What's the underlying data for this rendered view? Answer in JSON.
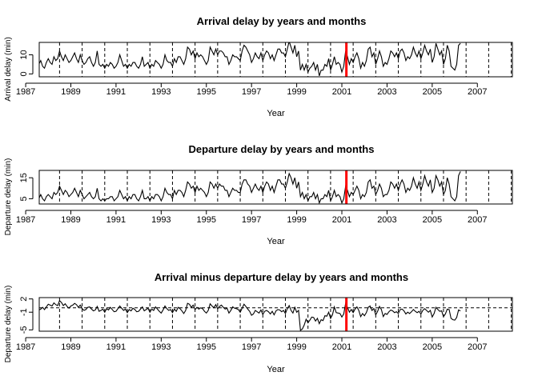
{
  "colors": {
    "series": "#000000",
    "event_line": "#ff0000",
    "frame": "#000000"
  },
  "chart_data": [
    {
      "type": "line",
      "title": "Arrival delay by years and months",
      "xlabel": "Year",
      "ylabel": "Arrival delay (min)",
      "xlim": [
        1987.6,
        2008.55
      ],
      "ylim": [
        -1.5,
        16.5
      ],
      "x_ticks": [
        1987,
        1989,
        1991,
        1993,
        1995,
        1997,
        1999,
        2001,
        2003,
        2005,
        2007
      ],
      "x_tick_labels": [
        "1987",
        "1989",
        "1991",
        "1993",
        "1995",
        "1997",
        "1999",
        "2001",
        "2003",
        "2005",
        "2007"
      ],
      "y_ticks": [
        0,
        10
      ],
      "y_tick_labels": [
        "0",
        "10"
      ],
      "year_separators": [
        1987.5,
        1988.5,
        1989.5,
        1990.5,
        1991.5,
        1992.5,
        1993.5,
        1994.5,
        1995.5,
        1996.5,
        1997.5,
        1998.5,
        1999.5,
        2000.5,
        2001.5,
        2002.5,
        2003.5,
        2004.5,
        2005.5,
        2006.5,
        2007.5,
        2008.5
      ],
      "event_line_x": 2001.2,
      "series": [
        {
          "x_start": 1987.0,
          "x_step": 0.0833333,
          "values": [
            6,
            8,
            13,
            10,
            6,
            4,
            6,
            5,
            7,
            4,
            3,
            6,
            8,
            6,
            5,
            9,
            7,
            8,
            12,
            9,
            7,
            10,
            8,
            6,
            7,
            9,
            11,
            8,
            6,
            10,
            7,
            5,
            6,
            8,
            9,
            6,
            4,
            6,
            12,
            5,
            4,
            5,
            3,
            5,
            4,
            6,
            5,
            3,
            4,
            6,
            10,
            7,
            4,
            5,
            3,
            5,
            4,
            6,
            6,
            4,
            3,
            5,
            9,
            4,
            5,
            6,
            3,
            5,
            4,
            7,
            6,
            5,
            3,
            5,
            10,
            7,
            6,
            6,
            4,
            8,
            6,
            9,
            9,
            7,
            5,
            8,
            14,
            13,
            10,
            12,
            8,
            11,
            9,
            10,
            9,
            7,
            5,
            7,
            14,
            12,
            10,
            13,
            10,
            12,
            12,
            11,
            9,
            9,
            5,
            7,
            10,
            9,
            9,
            8,
            7,
            12,
            15,
            14,
            12,
            10,
            6,
            8,
            11,
            9,
            8,
            11,
            7,
            10,
            12,
            11,
            8,
            10,
            7,
            10,
            13,
            13,
            11,
            11,
            9,
            13,
            17,
            14,
            11,
            15,
            9,
            12,
            2,
            5,
            2,
            5,
            1,
            3,
            4,
            6,
            2,
            5,
            -1,
            2,
            2,
            5,
            4,
            8,
            2,
            5,
            9,
            5,
            6,
            5,
            1,
            4,
            12,
            9,
            5,
            8,
            6,
            9,
            11,
            8,
            3,
            6,
            4,
            7,
            13,
            14,
            9,
            11,
            5,
            8,
            12,
            9,
            4,
            6,
            5,
            8,
            12,
            11,
            9,
            11,
            8,
            12,
            13,
            11,
            7,
            9,
            8,
            10,
            14,
            11,
            9,
            12,
            8,
            11,
            15,
            12,
            10,
            13,
            6,
            9,
            16,
            13,
            10,
            12,
            5,
            8,
            15,
            12,
            4,
            3,
            2,
            5,
            15,
            16
          ]
        }
      ]
    },
    {
      "type": "line",
      "title": "Departure delay by years and months",
      "xlabel": "Year",
      "ylabel": "Departure delay (min)",
      "xlim": [
        1987.6,
        2008.55
      ],
      "ylim": [
        2.5,
        18.5
      ],
      "x_ticks": [
        1987,
        1989,
        1991,
        1993,
        1995,
        1997,
        1999,
        2001,
        2003,
        2005,
        2007
      ],
      "x_tick_labels": [
        "1987",
        "1989",
        "1991",
        "1993",
        "1995",
        "1997",
        "1999",
        "2001",
        "2003",
        "2005",
        "2007"
      ],
      "y_ticks": [
        5,
        15
      ],
      "y_tick_labels": [
        "5",
        "15"
      ],
      "year_separators": [
        1987.5,
        1988.5,
        1989.5,
        1990.5,
        1991.5,
        1992.5,
        1993.5,
        1994.5,
        1995.5,
        1996.5,
        1997.5,
        1998.5,
        1999.5,
        2000.5,
        2001.5,
        2002.5,
        2003.5,
        2004.5,
        2005.5,
        2006.5,
        2007.5,
        2008.5
      ],
      "event_line_x": 2001.2,
      "series": [
        {
          "x_start": 1987.0,
          "x_step": 0.0833333,
          "values": [
            5,
            6,
            11,
            9,
            6,
            5,
            6,
            5,
            7,
            5,
            4,
            6,
            7,
            6,
            5,
            8,
            7,
            8,
            11,
            9,
            7,
            9,
            8,
            6,
            7,
            8,
            10,
            8,
            6,
            9,
            7,
            5,
            6,
            7,
            8,
            6,
            5,
            6,
            10,
            5,
            4,
            5,
            4,
            5,
            5,
            6,
            6,
            4,
            5,
            6,
            9,
            7,
            5,
            6,
            4,
            6,
            5,
            7,
            7,
            5,
            4,
            6,
            9,
            5,
            5,
            6,
            4,
            6,
            5,
            7,
            7,
            6,
            4,
            6,
            10,
            8,
            7,
            7,
            5,
            9,
            7,
            9,
            9,
            8,
            6,
            9,
            13,
            12,
            10,
            11,
            8,
            11,
            9,
            10,
            9,
            8,
            6,
            8,
            13,
            12,
            10,
            12,
            10,
            12,
            11,
            11,
            9,
            9,
            6,
            8,
            10,
            9,
            9,
            8,
            8,
            12,
            14,
            14,
            12,
            11,
            8,
            10,
            12,
            10,
            9,
            11,
            8,
            11,
            13,
            12,
            9,
            11,
            8,
            11,
            14,
            14,
            12,
            12,
            10,
            13,
            17,
            15,
            12,
            15,
            10,
            13,
            6,
            8,
            5,
            7,
            4,
            6,
            6,
            8,
            5,
            7,
            3,
            5,
            5,
            7,
            6,
            9,
            4,
            6,
            9,
            6,
            7,
            6,
            3,
            5,
            11,
            9,
            6,
            8,
            7,
            9,
            11,
            9,
            5,
            7,
            6,
            8,
            13,
            14,
            10,
            11,
            7,
            9,
            12,
            10,
            6,
            7,
            7,
            9,
            13,
            12,
            10,
            12,
            9,
            12,
            14,
            12,
            8,
            10,
            9,
            11,
            15,
            12,
            10,
            13,
            9,
            12,
            16,
            13,
            11,
            14,
            8,
            10,
            16,
            14,
            11,
            13,
            7,
            9,
            15,
            12,
            6,
            5,
            4,
            6,
            16,
            18
          ]
        }
      ]
    },
    {
      "type": "line",
      "title": "Arrival minus departure delay by years and months",
      "xlabel": "Year",
      "ylabel": "Departure delay (min)",
      "xlim": [
        1987.6,
        2008.55
      ],
      "ylim": [
        -5.3,
        2.3
      ],
      "x_ticks": [
        1987,
        1989,
        1991,
        1993,
        1995,
        1997,
        1999,
        2001,
        2003,
        2005,
        2007
      ],
      "x_tick_labels": [
        "1987",
        "1989",
        "1991",
        "1993",
        "1995",
        "1997",
        "1999",
        "2001",
        "2003",
        "2005",
        "2007"
      ],
      "y_ticks": [
        -5,
        -1,
        2
      ],
      "y_tick_labels": [
        "-5",
        "-1",
        "2"
      ],
      "year_separators": [
        1987.5,
        1988.5,
        1989.5,
        1990.5,
        1991.5,
        1992.5,
        1993.5,
        1994.5,
        1995.5,
        1996.5,
        1997.5,
        1998.5,
        1999.5,
        2000.5,
        2001.5,
        2002.5,
        2003.5,
        2004.5,
        2005.5,
        2006.5,
        2007.5,
        2008.5
      ],
      "event_line_x": 2001.2,
      "reference_line_y": 0,
      "series": [
        {
          "x_start": 1987.0,
          "x_step": 0.0833333,
          "values": [
            1.2,
            1.5,
            1.9,
            1.7,
            0.8,
            0.2,
            -0.3,
            -0.5,
            -0.3,
            0.1,
            -0.4,
            0.2,
            0.8,
            0.6,
            0.4,
            1.1,
            0.7,
            0.5,
            1.6,
            1.2,
            0.5,
            0.9,
            0.3,
            -0.1,
            0.4,
            0.6,
            1.0,
            0.7,
            0.1,
            0.6,
            -0.2,
            -0.6,
            -0.4,
            0.1,
            0.2,
            -0.3,
            -0.7,
            -0.5,
            0.3,
            -0.8,
            -0.6,
            -0.3,
            -1.0,
            -0.2,
            -0.5,
            0.1,
            -0.4,
            -0.9,
            -0.8,
            -0.2,
            0.4,
            -0.1,
            -0.6,
            -0.3,
            -1.1,
            -0.4,
            -0.7,
            -0.1,
            -0.4,
            -0.9,
            -0.8,
            -0.3,
            0.2,
            -0.7,
            -0.4,
            -0.1,
            -1.0,
            -0.3,
            -0.6,
            0.2,
            -0.3,
            -0.8,
            -1.2,
            -0.5,
            0.4,
            -0.2,
            -0.6,
            -0.4,
            -1.1,
            -0.3,
            -0.8,
            0.1,
            -0.2,
            -0.7,
            -1.3,
            -0.6,
            1.0,
            0.8,
            0.1,
            0.6,
            -0.4,
            0.1,
            -0.3,
            0.0,
            -0.2,
            -0.8,
            -1.2,
            -0.6,
            0.9,
            0.4,
            0.0,
            0.7,
            -0.2,
            0.3,
            0.6,
            0.1,
            -0.3,
            -0.1,
            -1.2,
            -0.6,
            0.2,
            -0.1,
            -0.2,
            -0.4,
            -1.0,
            -0.1,
            0.8,
            0.3,
            -0.3,
            -0.8,
            -1.7,
            -1.4,
            -0.6,
            -0.9,
            -1.2,
            -0.5,
            -1.5,
            -0.8,
            -0.6,
            -0.9,
            -1.4,
            -0.8,
            -1.6,
            -0.7,
            -0.4,
            -0.5,
            -0.9,
            -0.6,
            -1.3,
            -0.2,
            0.5,
            -0.6,
            -1.2,
            0.1,
            -1.0,
            -0.6,
            -5.1,
            -4.8,
            -3.9,
            -2.6,
            -3.4,
            -2.8,
            -2.1,
            -2.2,
            -3.0,
            -2.4,
            -3.6,
            -2.7,
            -2.9,
            -1.8,
            -1.9,
            -1.0,
            -2.4,
            -1.6,
            0.2,
            -1.1,
            -1.2,
            -1.3,
            -2.1,
            -1.4,
            1.0,
            0.1,
            -1.0,
            -0.4,
            -1.1,
            -0.3,
            0.2,
            -0.6,
            -2.0,
            -1.3,
            -1.8,
            -1.1,
            0.1,
            0.4,
            -0.6,
            -0.2,
            -1.6,
            -0.8,
            0.3,
            -0.4,
            -2.0,
            -1.3,
            -1.5,
            -0.9,
            -0.5,
            -0.7,
            -1.1,
            -0.9,
            -1.3,
            -0.4,
            -0.3,
            -0.7,
            -1.4,
            -1.0,
            -1.3,
            -0.9,
            -0.4,
            -0.8,
            -1.1,
            -0.8,
            -1.4,
            -0.6,
            -0.2,
            -0.6,
            -1.0,
            -0.6,
            -2.1,
            -1.3,
            0.1,
            -0.4,
            -0.8,
            -0.7,
            -2.0,
            -1.4,
            -0.3,
            -0.4,
            -2.4,
            -2.7,
            -2.8,
            -2.2,
            -0.5,
            -0.7
          ]
        }
      ]
    }
  ]
}
